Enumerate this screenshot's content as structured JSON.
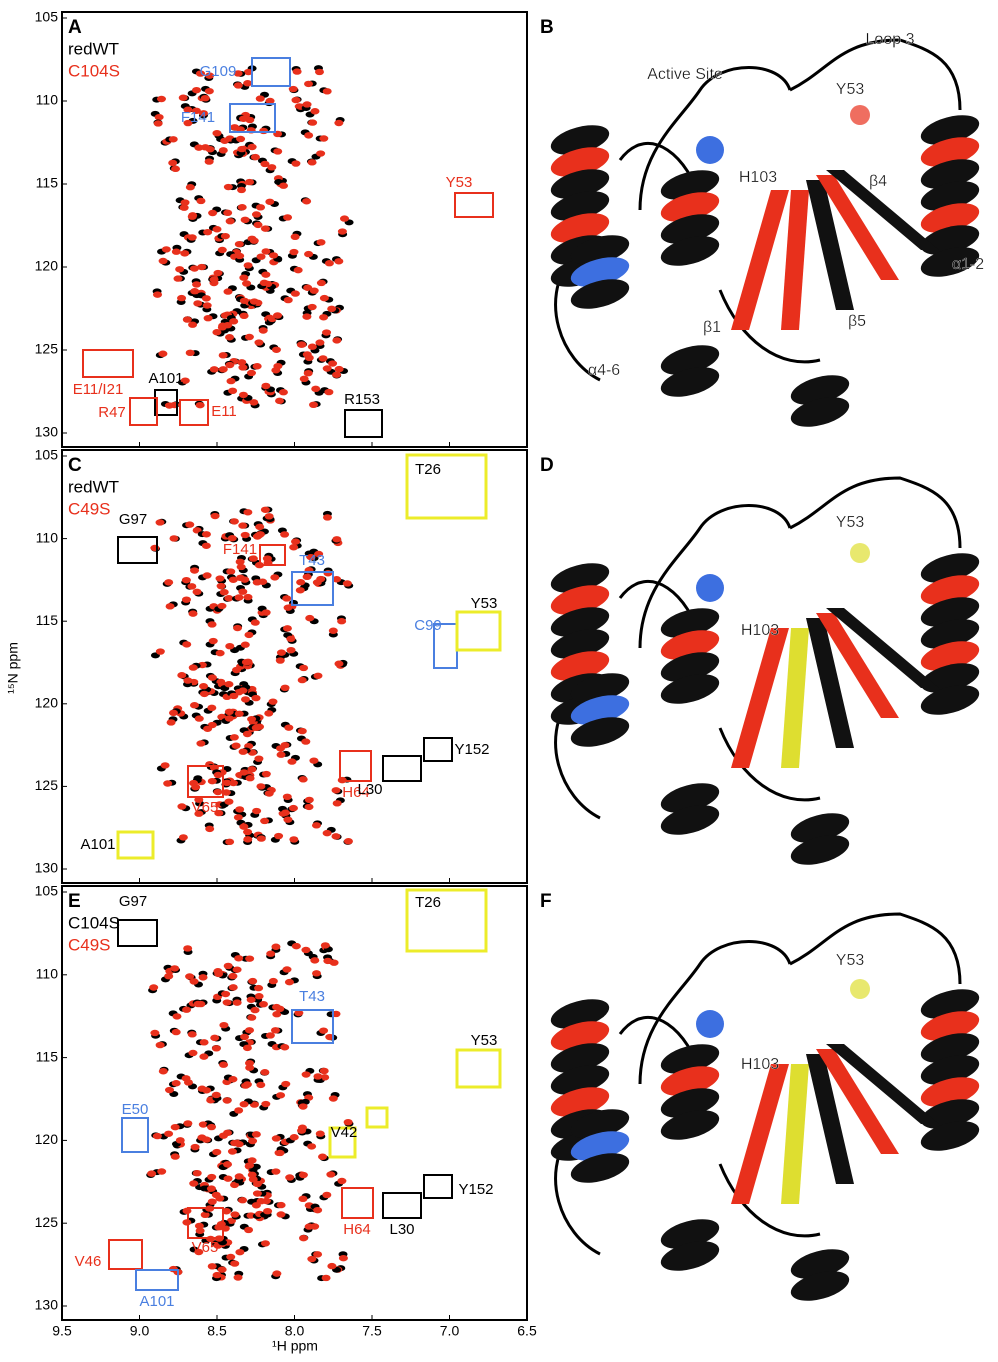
{
  "axes": {
    "x_label": "¹H ppm",
    "y_label": "¹⁵N ppm",
    "xticks": [
      9.5,
      {
        "value": 9,
        "label": "9.0"
      },
      8.5,
      {
        "value": 8,
        "label": "8.0"
      },
      7.5,
      {
        "value": 7,
        "label": "7.0"
      },
      6.5
    ],
    "yticks": [
      105,
      110,
      115,
      120,
      125,
      130
    ]
  },
  "spectra": [
    {
      "panel": "A",
      "legend": [
        {
          "name": "redWT",
          "color": "#000000"
        },
        {
          "name": "C104S",
          "color": "#e8301c"
        }
      ],
      "boxes": [
        {
          "label": "G109",
          "color": "#4a7fe0",
          "label_color": "#4a7fe0"
        },
        {
          "label": "F141",
          "color": "#4a7fe0",
          "label_color": "#4a7fe0"
        },
        {
          "label": "Y53",
          "color": "#e8301c",
          "label_color": "#e8301c"
        },
        {
          "label": "E11/I21",
          "color": "#e8301c",
          "label_color": "#e8301c"
        },
        {
          "label": "A101",
          "color": "#000000",
          "label_color": "#000000"
        },
        {
          "label": "R47",
          "color": "#e8301c",
          "label_color": "#e8301c"
        },
        {
          "label": "E11",
          "color": "#e8301c",
          "label_color": "#e8301c"
        },
        {
          "label": "R153",
          "color": "#000000",
          "label_color": "#000000"
        }
      ]
    },
    {
      "panel": "C",
      "legend": [
        {
          "name": "redWT",
          "color": "#000000"
        },
        {
          "name": "C49S",
          "color": "#e8301c"
        }
      ],
      "boxes": [
        {
          "label": "T26",
          "color": "#ecec2a",
          "label_color": "#000000"
        },
        {
          "label": "G97",
          "color": "#000000",
          "label_color": "#000000"
        },
        {
          "label": "F141",
          "color": "#e8301c",
          "label_color": "#e8301c"
        },
        {
          "label": "T43",
          "color": "#4a7fe0",
          "label_color": "#4a7fe0"
        },
        {
          "label": "C99",
          "color": "#4a7fe0",
          "label_color": "#4a7fe0"
        },
        {
          "label": "Y53",
          "color": "#ecec2a",
          "label_color": "#000000"
        },
        {
          "label": "Y152",
          "color": "#000000",
          "label_color": "#000000"
        },
        {
          "label": "H64",
          "color": "#e8301c",
          "label_color": "#e8301c"
        },
        {
          "label": "L30",
          "color": "#000000",
          "label_color": "#000000"
        },
        {
          "label": "V65",
          "color": "#e8301c",
          "label_color": "#e8301c"
        },
        {
          "label": "A101",
          "color": "#ecec2a",
          "label_color": "#000000"
        }
      ]
    },
    {
      "panel": "E",
      "legend": [
        {
          "name": "C104S",
          "color": "#000000"
        },
        {
          "name": "C49S",
          "color": "#e8301c"
        }
      ],
      "boxes": [
        {
          "label": "T26",
          "color": "#ecec2a",
          "label_color": "#000000"
        },
        {
          "label": "G97",
          "color": "#000000",
          "label_color": "#000000"
        },
        {
          "label": "T43",
          "color": "#4a7fe0",
          "label_color": "#4a7fe0"
        },
        {
          "label": "Y53",
          "color": "#ecec2a",
          "label_color": "#000000"
        },
        {
          "label": "E50",
          "color": "#4a7fe0",
          "label_color": "#4a7fe0"
        },
        {
          "label": "V42",
          "color": "#ecec2a",
          "label_color": "#000000"
        },
        {
          "label": "Y152",
          "color": "#000000",
          "label_color": "#000000"
        },
        {
          "label": "H64",
          "color": "#e8301c",
          "label_color": "#e8301c"
        },
        {
          "label": "L30",
          "color": "#000000",
          "label_color": "#000000"
        },
        {
          "label": "V65",
          "color": "#e8301c",
          "label_color": "#e8301c"
        },
        {
          "label": "V46",
          "color": "#e8301c",
          "label_color": "#e8301c"
        },
        {
          "label": "A101",
          "color": "#4a7fe0",
          "label_color": "#4a7fe0"
        }
      ]
    }
  ],
  "structures": [
    {
      "panel": "B",
      "labels": [
        "Active Site",
        "Loop 3",
        "Y53",
        "H103",
        "β4",
        "α1-2",
        "β5",
        "β1",
        "α4-6"
      ]
    },
    {
      "panel": "D",
      "labels": [
        "Y53",
        "H103"
      ]
    },
    {
      "panel": "F",
      "labels": [
        "Y53",
        "H103"
      ]
    }
  ]
}
